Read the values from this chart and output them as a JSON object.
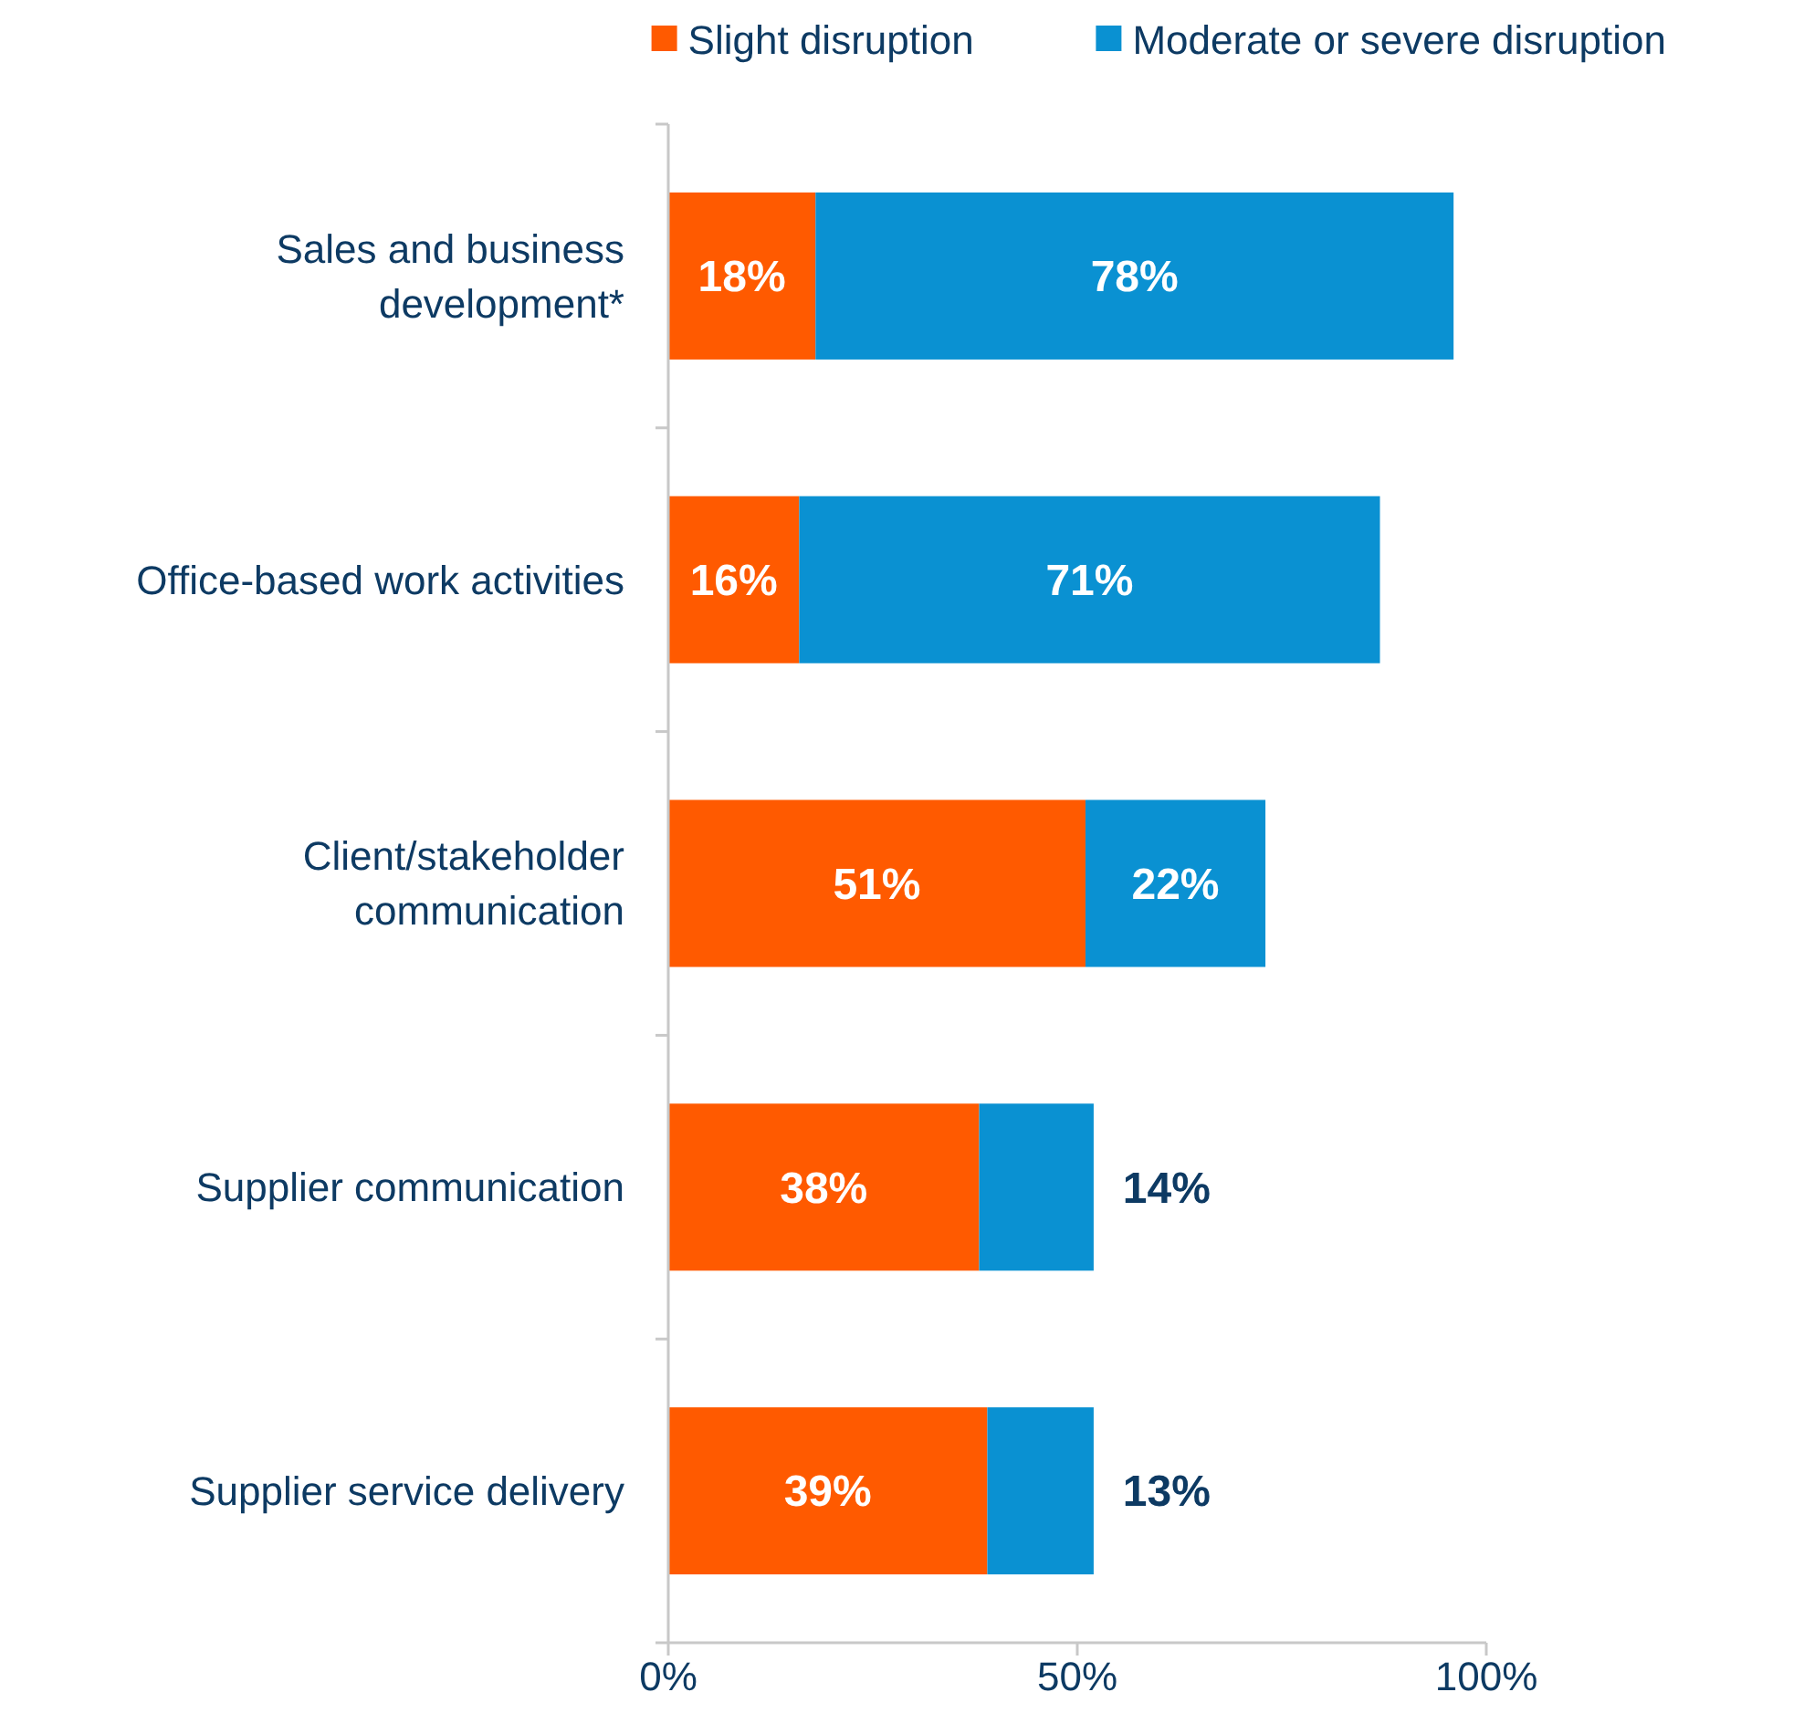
{
  "chart_data": {
    "type": "bar",
    "orientation": "horizontal",
    "stacked": true,
    "categories": [
      "Sales and business development*",
      "Office-based work activities",
      "Client/stakeholder communication",
      "Supplier communication",
      "Supplier service delivery"
    ],
    "series": [
      {
        "name": "Slight disruption",
        "color": "#ff5a00",
        "values": [
          18,
          16,
          51,
          38,
          39
        ],
        "value_labels": [
          "18%",
          "16%",
          "51%",
          "38%",
          "39%"
        ]
      },
      {
        "name": "Moderate or severe disruption",
        "color": "#0a91d2",
        "values": [
          78,
          71,
          22,
          14,
          13
        ],
        "value_labels": [
          "78%",
          "71%",
          "22%",
          "14%",
          "13%"
        ]
      }
    ],
    "xlim": [
      0,
      100
    ],
    "xticks": [
      {
        "value": 0,
        "label": "0%"
      },
      {
        "value": 50,
        "label": "50%"
      },
      {
        "value": 100,
        "label": "100%"
      }
    ],
    "grid": false,
    "legend": "top right"
  }
}
